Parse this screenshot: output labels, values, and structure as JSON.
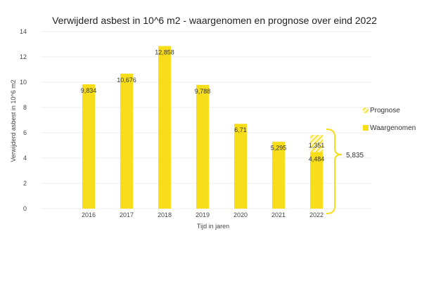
{
  "chart_data": {
    "type": "bar",
    "title": "Verwijderd asbest in 10^6 m2 - waargenomen en prognose over eind 2022",
    "xlabel": "Tijd in jaren",
    "ylabel": "Verwijderd asbest in 10^6 m2",
    "ylim": [
      0,
      14
    ],
    "yticks": [
      "0",
      "2",
      "4",
      "6",
      "8",
      "10",
      "12",
      "14"
    ],
    "grid": true,
    "categories": [
      "2016",
      "2017",
      "2018",
      "2019",
      "2020",
      "2021",
      "2022"
    ],
    "series": [
      {
        "name": "Waargenomen",
        "color": "#f7dd1a",
        "values": [
          9.834,
          10.676,
          12.858,
          9.788,
          6.71,
          5.295,
          4.484
        ],
        "labels": [
          "9,834",
          "10,676",
          "12,858",
          "9,788",
          "6,71",
          "5,295",
          "4,484"
        ]
      },
      {
        "name": "Prognose",
        "color": "#f7dd1a",
        "pattern": "hatched",
        "values": [
          null,
          null,
          null,
          null,
          null,
          null,
          1.351
        ],
        "labels": [
          "",
          "",
          "",
          "",
          "",
          "",
          "1,351"
        ]
      }
    ],
    "annotation": {
      "category": "2022",
      "label": "5,835",
      "value": 5.835
    },
    "legend": {
      "placement": "right",
      "items": [
        "Prognose",
        "Waargenomen"
      ]
    }
  }
}
